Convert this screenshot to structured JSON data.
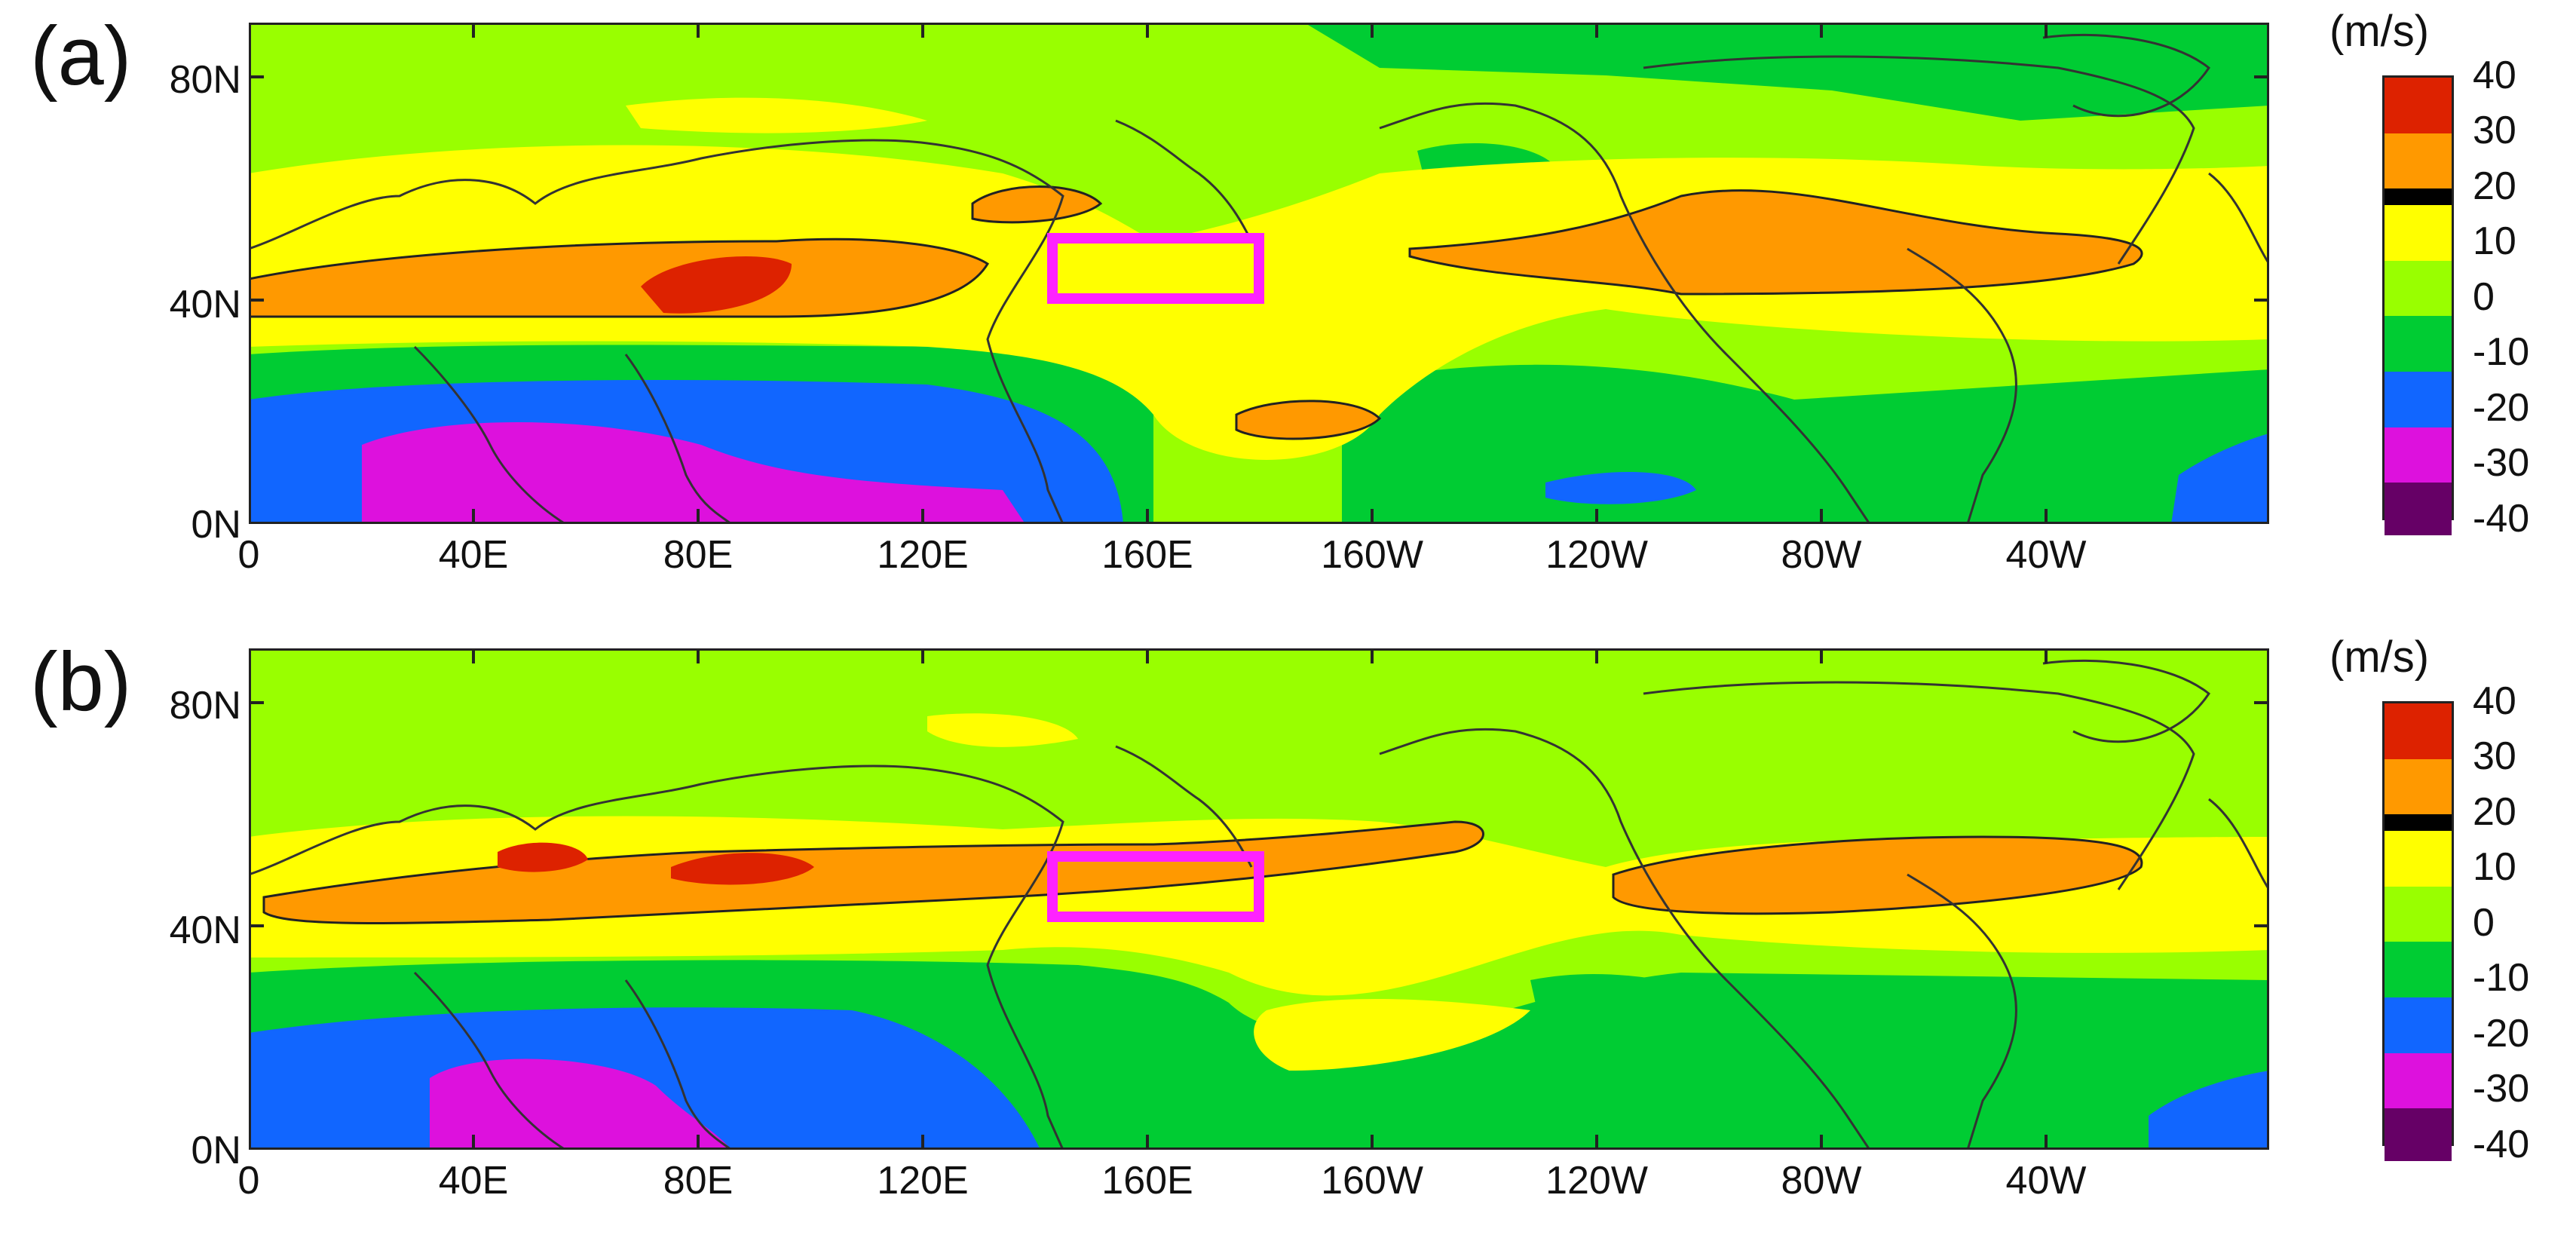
{
  "panels": [
    {
      "label": "(a)"
    },
    {
      "label": "(b)"
    }
  ],
  "axes": {
    "x_ticks": [
      "0",
      "40E",
      "80E",
      "120E",
      "160E",
      "160W",
      "120W",
      "80W",
      "40W"
    ],
    "y_ticks": [
      "80N",
      "40N",
      "0N"
    ]
  },
  "colorbar": {
    "unit": "(m/s)",
    "labels": [
      "40",
      "30",
      "20",
      "10",
      "0",
      "-10",
      "-20",
      "-30",
      "-40"
    ],
    "colors": [
      "#dd2200",
      "#ff9900",
      "#000000",
      "#ffff00",
      "#99ff00",
      "#00cc33",
      "#1166ff",
      "#dd11dd",
      "#660066"
    ]
  },
  "colors": {
    "background_field": "#99ff00",
    "highlight_box": "#ff22ff",
    "coastline": "#333333"
  }
}
